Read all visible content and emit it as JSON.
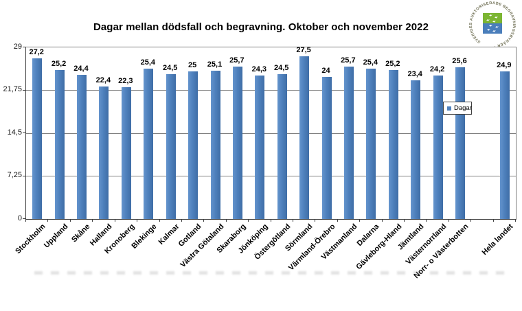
{
  "page": {
    "background": "#ffffff"
  },
  "chart_data": {
    "type": "bar",
    "title": "Dagar mellan dödsfall och begravning. Oktober och november 2022",
    "xlabel": "",
    "ylabel": "",
    "ylim": [
      0,
      29
    ],
    "grid": true,
    "bar_color": "#4f81bd",
    "legend": {
      "label": "Dagar",
      "position": "middle-right-inside"
    },
    "y_ticks": [
      {
        "value": 29,
        "display": "29"
      },
      {
        "value": 21.75,
        "display": "21,75"
      },
      {
        "value": 14.5,
        "display": "14,5"
      },
      {
        "value": 7.25,
        "display": "7,25"
      },
      {
        "value": 0,
        "display": "0"
      }
    ],
    "categories": [
      "Stockholm",
      "Uppland",
      "Skåne",
      "Halland",
      "Kronoberg",
      "Blekinge",
      "Kalmar",
      "Gotland",
      "Västra Götaland",
      "Skaraborg",
      "Jönköping",
      "Östergötland",
      "Sörmland",
      "Värmland-Örebro",
      "Västmanland",
      "Dalarna",
      "Gävleborg-Hland",
      "Jämtland",
      "Västernorrland",
      "Norr- o Västerbotten",
      "",
      "Hela landet"
    ],
    "values": [
      27.2,
      25.2,
      24.4,
      22.4,
      22.3,
      25.4,
      24.5,
      25,
      25.1,
      25.7,
      24.3,
      24.5,
      27.5,
      24,
      25.7,
      25.4,
      25.2,
      23.4,
      24.2,
      25.6,
      null,
      24.9
    ],
    "value_displays": [
      "27,2",
      "25,2",
      "24,4",
      "22,4",
      "22,3",
      "25,4",
      "24,5",
      "25",
      "25,1",
      "25,7",
      "24,3",
      "24,5",
      "27,5",
      "24",
      "25,7",
      "25,4",
      "25,2",
      "23,4",
      "24,2",
      "25,6",
      "",
      "24,9"
    ]
  },
  "logo": {
    "ring_text": "SVERIGES AUKTORISERADE BEGRAVNINGSBYRÅER ·",
    "green": "#7cb532",
    "blue": "#4a7ebb",
    "text_color": "#6e6e52"
  }
}
